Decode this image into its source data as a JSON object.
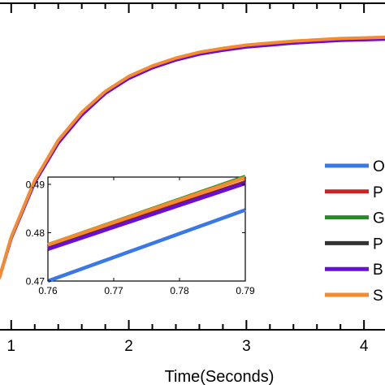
{
  "chart_data": [
    {
      "type": "line",
      "title": "",
      "xlabel": "Time(Seconds)",
      "ylabel": "",
      "xlim": [
        0.9,
        4.6
      ],
      "ylim": [
        0.4,
        0.9
      ],
      "x_ticks": [
        1,
        2,
        3,
        4
      ],
      "x_tick_labels": [
        "1",
        "2",
        "3",
        "4"
      ],
      "grid": false,
      "legend": {
        "placement": "right",
        "entries": [
          {
            "label": "O",
            "color": "#3b78e7"
          },
          {
            "label": "P",
            "color": "#d21f1f"
          },
          {
            "label": "G",
            "color": "#1f8f1f"
          },
          {
            "label": "P",
            "color": "#333333"
          },
          {
            "label": "B",
            "color": "#6a0dd6"
          },
          {
            "label": "S",
            "color": "#f58a2e"
          }
        ]
      },
      "x": [
        0.9,
        1.0,
        1.2,
        1.4,
        1.6,
        1.8,
        2.0,
        2.2,
        2.4,
        2.6,
        2.8,
        3.0,
        3.2,
        3.4,
        3.6,
        3.8,
        4.0,
        4.2,
        4.4,
        4.6
      ],
      "series": [
        {
          "color": "#6a0dd6",
          "values": [
            0.48,
            0.54,
            0.626,
            0.686,
            0.729,
            0.762,
            0.785,
            0.801,
            0.813,
            0.822,
            0.828,
            0.833,
            0.836,
            0.839,
            0.841,
            0.843,
            0.844,
            0.845,
            0.846,
            0.847
          ]
        },
        {
          "color": "#f58a2e",
          "values": [
            0.48,
            0.542,
            0.629,
            0.69,
            0.733,
            0.765,
            0.788,
            0.804,
            0.816,
            0.825,
            0.831,
            0.836,
            0.839,
            0.842,
            0.844,
            0.846,
            0.847,
            0.848,
            0.849,
            0.85
          ]
        }
      ]
    },
    {
      "type": "line",
      "title": "",
      "xlabel": "",
      "ylabel": "",
      "xlim": [
        0.76,
        0.79
      ],
      "ylim": [
        0.47,
        0.4915
      ],
      "x_ticks": [
        0.76,
        0.77,
        0.78,
        0.79
      ],
      "x_tick_labels": [
        "0.76",
        "0.77",
        "0.78",
        "0.79"
      ],
      "y_ticks": [
        0.47,
        0.48,
        0.49
      ],
      "y_tick_labels": [
        "0.47",
        "0.48",
        "0.49"
      ],
      "grid": false,
      "x": [
        0.76,
        0.79
      ],
      "series": [
        {
          "color": "#3b78e7",
          "values": [
            0.47,
            0.4847
          ]
        },
        {
          "color": "#d21f1f",
          "values": [
            0.4769,
            0.4905
          ]
        },
        {
          "color": "#333333",
          "values": [
            0.4767,
            0.4903
          ]
        },
        {
          "color": "#6a0dd6",
          "values": [
            0.4766,
            0.4902
          ]
        },
        {
          "color": "#1f8f1f",
          "values": [
            0.4775,
            0.4916
          ]
        },
        {
          "color": "#f58a2e",
          "values": [
            0.4775,
            0.4914
          ]
        }
      ]
    }
  ]
}
